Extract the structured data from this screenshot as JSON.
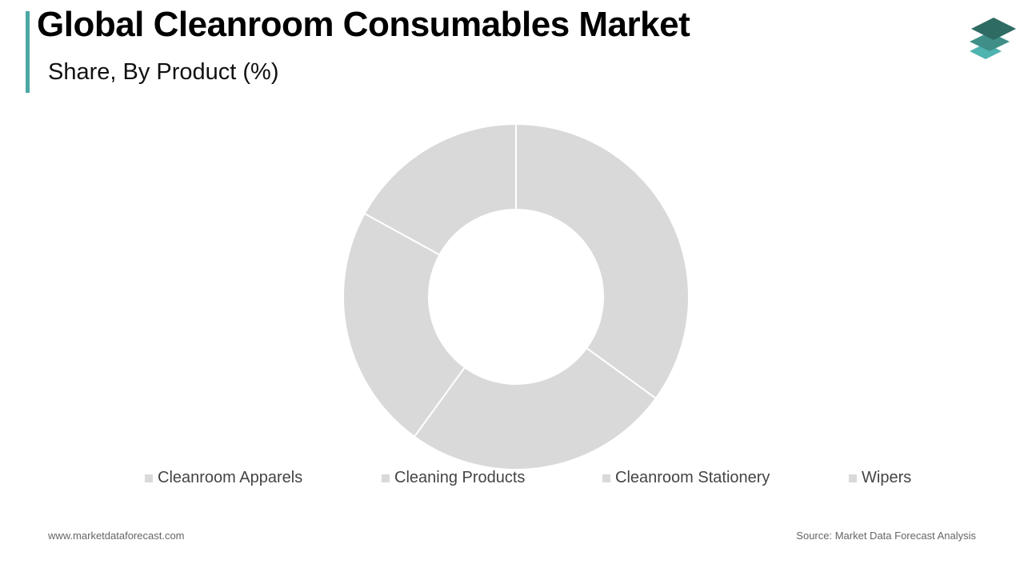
{
  "title": "Global Cleanroom Consumables Market",
  "subtitle": "Share, By Product (%)",
  "logo": {
    "icon": "stacked-layers-icon",
    "colors": [
      "#2e6b63",
      "#3f8f88",
      "#4fb3b0"
    ]
  },
  "colors": {
    "accent": "#4aa8a4",
    "slice": "#d9d9d9",
    "slice_border": "#ffffff"
  },
  "chart_data": {
    "type": "pie",
    "variant": "donut",
    "categories": [
      "Cleanroom Apparels",
      "Cleaning Products",
      "Cleanroom Stationery",
      "Wipers"
    ],
    "values": [
      35,
      25,
      23,
      17
    ],
    "legend": "bottom",
    "title": "Share, By Product (%)"
  },
  "footer": {
    "website": "www.marketdataforecast.com",
    "source": "Source: Market Data Forecast Analysis"
  }
}
